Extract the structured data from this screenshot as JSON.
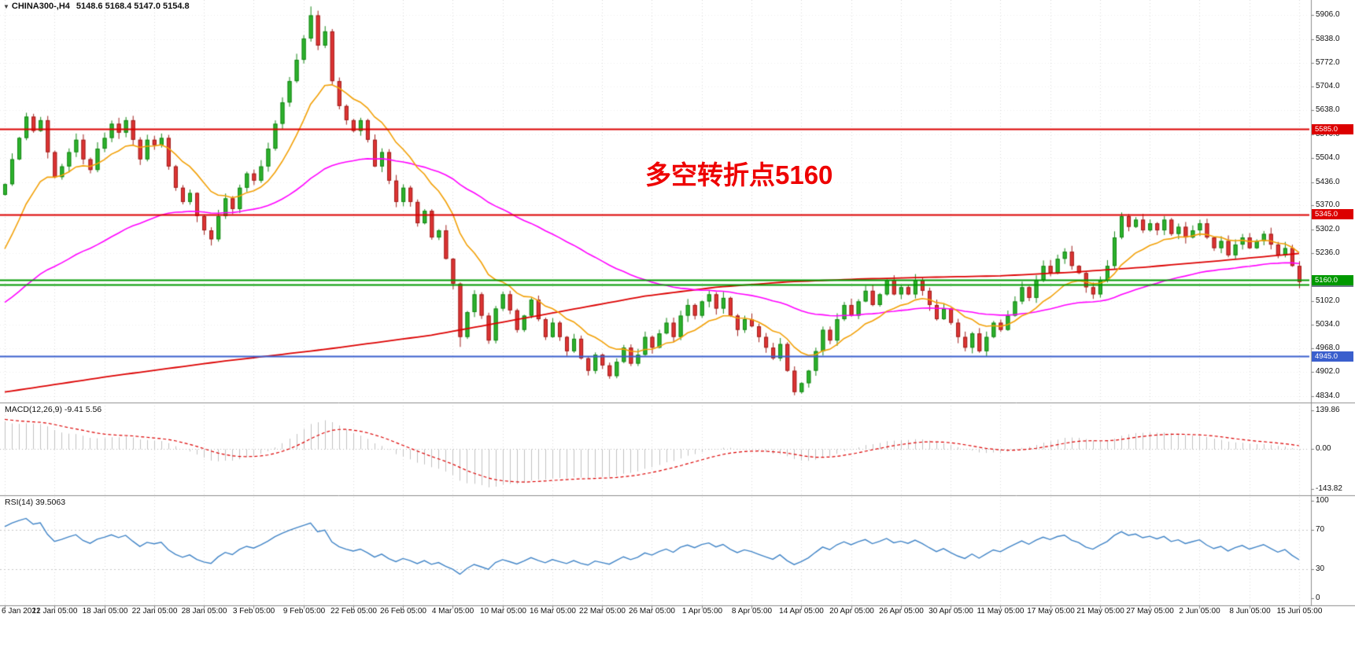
{
  "window": {
    "marker": "▼",
    "title": "CHINA300-,H4",
    "ohlc": "5148.6 5168.4 5147.0 5154.8",
    "open": "5148.6",
    "high": "5168.4",
    "low": "5147.0",
    "close": "5154.8"
  },
  "annotation": {
    "text": "多空转折点5160",
    "color": "#EE0000"
  },
  "indicators": {
    "macd": {
      "label": "MACD(12,26,9) -9.41 5.56",
      "ticks": [
        "139.86",
        "0.00",
        "-143.82"
      ],
      "tick_values": [
        139.86,
        0,
        -143.82
      ]
    },
    "rsi": {
      "label": "RSI(14) 39.5063",
      "ticks": [
        "100",
        "70",
        "30",
        "0"
      ],
      "tick_values": [
        100,
        70,
        30,
        0
      ]
    }
  },
  "chart_data": {
    "type": "candlestick",
    "symbol": "CHINA300-",
    "timeframe": "H4",
    "ylim": [
      4820,
      5935
    ],
    "y_ticks": [
      5906.0,
      5838.0,
      5772.0,
      5704.0,
      5638.0,
      5570.0,
      5504.0,
      5436.0,
      5370.0,
      5302.0,
      5236.0,
      5102.0,
      5034.0,
      4968.0,
      4902.0,
      4834.0
    ],
    "x_labels": [
      "6 Jan 2021",
      "12 Jan 05:00",
      "18 Jan 05:00",
      "22 Jan 05:00",
      "28 Jan 05:00",
      "3 Feb 05:00",
      "9 Feb 05:00",
      "22 Feb 05:00",
      "26 Feb 05:00",
      "4 Mar 05:00",
      "10 Mar 05:00",
      "16 Mar 05:00",
      "22 Mar 05:00",
      "26 Mar 05:00",
      "1 Apr 05:00",
      "8 Apr 05:00",
      "14 Apr 05:00",
      "20 Apr 05:00",
      "26 Apr 05:00",
      "30 Apr 05:00",
      "11 May 05:00",
      "17 May 05:00",
      "21 May 05:00",
      "27 May 05:00",
      "2 Jun 05:00",
      "8 Jun 05:00",
      "15 Jun 05:00"
    ],
    "bars_per_label": 7,
    "first_open": 5400,
    "closes": [
      5430,
      5500,
      5560,
      5620,
      5580,
      5610,
      5520,
      5450,
      5480,
      5520,
      5555,
      5500,
      5470,
      5530,
      5560,
      5600,
      5575,
      5610,
      5555,
      5500,
      5555,
      5540,
      5560,
      5480,
      5420,
      5380,
      5405,
      5340,
      5300,
      5275,
      5340,
      5390,
      5360,
      5420,
      5460,
      5440,
      5480,
      5530,
      5600,
      5660,
      5720,
      5780,
      5840,
      5905,
      5820,
      5860,
      5720,
      5650,
      5610,
      5580,
      5610,
      5555,
      5480,
      5520,
      5440,
      5380,
      5420,
      5380,
      5320,
      5355,
      5280,
      5300,
      5220,
      5150,
      5000,
      5070,
      5120,
      5060,
      4990,
      5080,
      5120,
      5075,
      5020,
      5060,
      5105,
      5050,
      5000,
      5040,
      5000,
      4960,
      4995,
      4940,
      4905,
      4950,
      4920,
      4890,
      4930,
      4970,
      4925,
      4950,
      5000,
      4970,
      5010,
      5040,
      5000,
      5060,
      5090,
      5060,
      5100,
      5120,
      5080,
      5110,
      5060,
      5020,
      5050,
      5030,
      5000,
      4970,
      4940,
      4980,
      4905,
      4845,
      4870,
      4905,
      4960,
      5020,
      4990,
      5050,
      5090,
      5060,
      5100,
      5130,
      5090,
      5120,
      5160,
      5120,
      5140,
      5120,
      5160,
      5130,
      5090,
      5050,
      5080,
      5040,
      5000,
      4970,
      5010,
      4960,
      5000,
      5040,
      5020,
      5060,
      5100,
      5140,
      5110,
      5160,
      5200,
      5180,
      5220,
      5240,
      5200,
      5180,
      5140,
      5120,
      5160,
      5200,
      5280,
      5340,
      5310,
      5330,
      5300,
      5320,
      5300,
      5330,
      5290,
      5310,
      5280,
      5300,
      5320,
      5280,
      5250,
      5270,
      5230,
      5260,
      5280,
      5250,
      5270,
      5290,
      5260,
      5230,
      5250,
      5200,
      5154.8
    ],
    "wick_overrides": [
      {
        "index": 43,
        "high": 5930
      },
      {
        "index": 64,
        "low": 4972
      },
      {
        "index": 111,
        "low": 4836
      }
    ],
    "levels": [
      {
        "value": 5585.0,
        "label": "5585.0",
        "color": "#DC0000",
        "tag": true
      },
      {
        "value": 5345.0,
        "label": "5345.0",
        "color": "#DC0000",
        "tag": true
      },
      {
        "value": 5160.0,
        "label": "5160.0",
        "color": "#009900",
        "tag": true
      },
      {
        "value": 5148.0,
        "label": "",
        "color": "#009900",
        "tag": false
      },
      {
        "value": 4945.0,
        "label": "4945.0",
        "color": "#3A5FCD",
        "tag": true
      }
    ],
    "bid_tag": {
      "value": 5154.8,
      "label": "5154.8",
      "bg": "#6E7B8B"
    },
    "ma_fast": {
      "period": 12,
      "color": "#F2A007",
      "seed": 5215
    },
    "ma_mid": {
      "period": 55,
      "color": "#FF00FF",
      "seed": 5085
    },
    "ma_slow": {
      "color": "#DC0000",
      "waypoints": [
        [
          0,
          4845
        ],
        [
          15,
          4890
        ],
        [
          30,
          4930
        ],
        [
          45,
          4965
        ],
        [
          60,
          5005
        ],
        [
          75,
          5060
        ],
        [
          90,
          5115
        ],
        [
          100,
          5140
        ],
        [
          110,
          5155
        ],
        [
          120,
          5163
        ],
        [
          130,
          5168
        ],
        [
          140,
          5172
        ],
        [
          150,
          5182
        ],
        [
          160,
          5196
        ],
        [
          170,
          5213
        ],
        [
          182,
          5235
        ]
      ]
    },
    "macd": {
      "fast": 12,
      "slow": 26,
      "signal": 9,
      "seed_fast": 5505,
      "seed_slow": 5390,
      "seed_signal": 110,
      "range": [
        -158,
        155
      ],
      "hist_color": "#C0C0C0",
      "signal_color": "#DC0000"
    },
    "rsi": {
      "period": 14,
      "seed_gain": 25,
      "seed_loss": 9,
      "levels": [
        70,
        30
      ],
      "line_color": "#3F83C6"
    },
    "colors": {
      "up_fill": "#2DB32D",
      "up_stroke": "#158515",
      "down_fill": "#DF3434",
      "down_stroke": "#9E1F1C",
      "grid": "#DADADA",
      "separator": "#8C8C8C"
    }
  }
}
